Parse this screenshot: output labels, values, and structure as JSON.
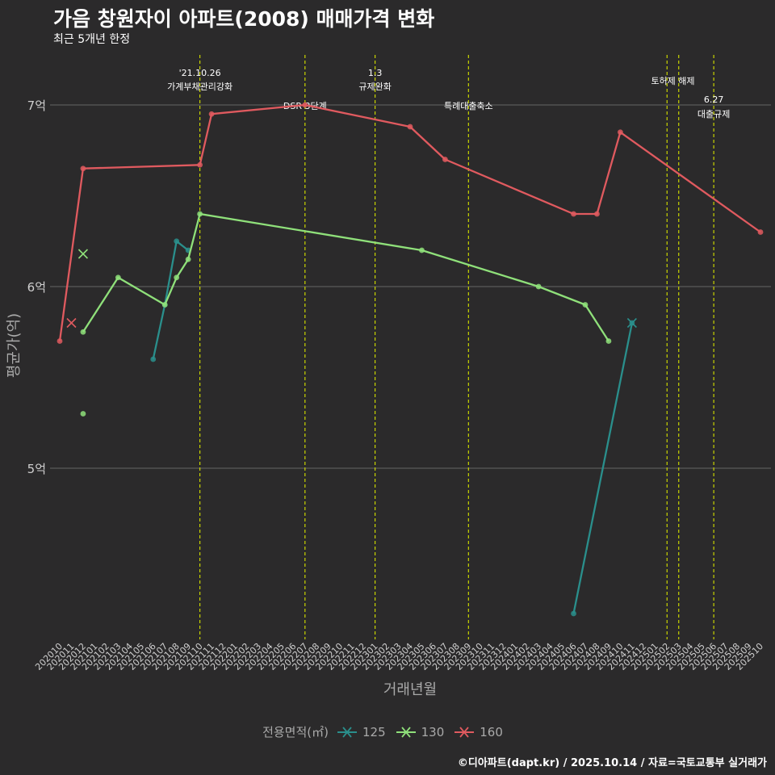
{
  "title": "가음 창원자이 아파트(2008) 매매가격 변화",
  "subtitle": "최근 5개년 한정",
  "caption": "©디아파트(dapt.kr) / 2025.10.14 / 자료=국토교통부 실거래가",
  "legend": {
    "title": "전용면적(㎡)"
  },
  "colors": {
    "background": "#2b2a2b",
    "grid": "#5a5a5a",
    "event_line": "#c8d400",
    "axis_text": "#a9a9a9"
  },
  "chart_data": {
    "type": "line",
    "title": "가음 창원자이 아파트(2008) 매매가격 변화",
    "xlabel": "거래년월",
    "ylabel": "평균가(억)",
    "ylim": [
      4.05,
      7.35
    ],
    "y_ticks": [
      5,
      6,
      7
    ],
    "y_tick_labels": [
      "5억",
      "6억",
      "7억"
    ],
    "x_start": "202010",
    "x_end": "202510",
    "x_tick_labels": [
      "202010",
      "202011",
      "202012",
      "202101",
      "202102",
      "202103",
      "202104",
      "202105",
      "202106",
      "202107",
      "202108",
      "202109",
      "202110",
      "202111",
      "202112",
      "202201",
      "202202",
      "202203",
      "202204",
      "202205",
      "202206",
      "202207",
      "202208",
      "202209",
      "202210",
      "202211",
      "202212",
      "202301",
      "202302",
      "202303",
      "202304",
      "202305",
      "202306",
      "202307",
      "202308",
      "202309",
      "202310",
      "202311",
      "202312",
      "202401",
      "202402",
      "202403",
      "202404",
      "202405",
      "202406",
      "202407",
      "202408",
      "202409",
      "202410",
      "202411",
      "202412",
      "202501",
      "202502",
      "202503",
      "202504",
      "202505",
      "202506",
      "202507",
      "202508",
      "202509",
      "202510"
    ],
    "series": [
      {
        "name": "125",
        "color": "#2a8f8c",
        "points": [
          [
            "202106",
            5.6
          ],
          [
            "202107",
            5.9
          ],
          [
            "202108",
            6.25
          ],
          [
            "202109",
            6.2
          ],
          [
            "202406",
            4.2
          ],
          [
            "202411",
            5.8
          ]
        ],
        "segments": [
          [
            0,
            1,
            2,
            3
          ],
          [
            4,
            5
          ]
        ],
        "highlight": [
          [
            "202411",
            5.8
          ]
        ]
      },
      {
        "name": "130",
        "color": "#8fe07a",
        "points": [
          [
            "202012",
            5.3
          ],
          [
            "202012",
            5.75
          ],
          [
            "202103",
            6.05
          ],
          [
            "202107",
            5.9
          ],
          [
            "202108",
            6.05
          ],
          [
            "202109",
            6.15
          ],
          [
            "202110",
            6.4
          ],
          [
            "202305",
            6.2
          ],
          [
            "202403",
            6.0
          ],
          [
            "202407",
            5.9
          ],
          [
            "202409",
            5.7
          ]
        ],
        "segments": [
          [
            1,
            2,
            3,
            4,
            5,
            6,
            7,
            8,
            9,
            10
          ]
        ],
        "highlight": [
          [
            "202012",
            6.18
          ]
        ]
      },
      {
        "name": "160",
        "color": "#e05a5f",
        "points": [
          [
            "202010",
            5.7
          ],
          [
            "202012",
            6.65
          ],
          [
            "202110",
            6.67
          ],
          [
            "202111",
            6.95
          ],
          [
            "202207",
            7.0
          ],
          [
            "202304",
            6.88
          ],
          [
            "202307",
            6.7
          ],
          [
            "202406",
            6.4
          ],
          [
            "202408",
            6.4
          ],
          [
            "202410",
            6.85
          ],
          [
            "202510",
            6.3
          ]
        ],
        "segments": [
          [
            0,
            1,
            2,
            3,
            4,
            5,
            6,
            7,
            8,
            9,
            10
          ]
        ],
        "highlight": [
          [
            "202011",
            5.8
          ]
        ]
      }
    ],
    "events": [
      {
        "month": "202110",
        "label_line1": "'21.10.26",
        "label_line2": "가계부채관리강화",
        "label_level": 1
      },
      {
        "month": "202207",
        "label_line1": "DSR 3단계",
        "label_line2": "",
        "label_level": 3
      },
      {
        "month": "202301",
        "label_line1": "1.3",
        "label_line2": "규제완화",
        "label_level": 1
      },
      {
        "month": "202309",
        "label_line1": "특례대출축소",
        "label_line2": "",
        "label_level": 3
      },
      {
        "month": "202502",
        "label_line1": "토허제 해제",
        "label_line2": "",
        "label_level": 2,
        "label_align": "202503"
      },
      {
        "month": "202503",
        "label_line1": "",
        "label_line2": "",
        "label_level": 0
      },
      {
        "month": "202506",
        "label_line1": "6.27",
        "label_line2": "대출규제",
        "label_level": 4
      }
    ]
  }
}
